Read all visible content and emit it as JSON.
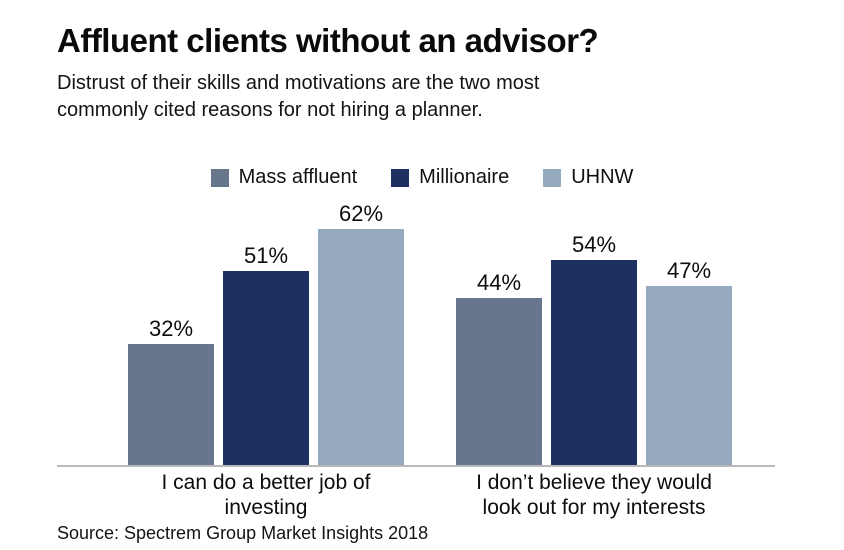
{
  "header": {
    "title": "Affluent clients without an advisor?",
    "subtitle_lines": [
      "Distrust of their skills and motivations are the two most",
      "commonly cited reasons for not hiring a planner."
    ]
  },
  "legend": {
    "items": [
      {
        "label": "Mass affluent",
        "color": "#67758d"
      },
      {
        "label": "Millionaire",
        "color": "#1c3162"
      },
      {
        "label": "UHNW",
        "color": "#95aabf"
      }
    ]
  },
  "chart_data": {
    "type": "bar",
    "title": "Affluent clients without an advisor?",
    "categories": [
      "I can do a better job of investing",
      "I don’t believe they would look out for my interests"
    ],
    "category_labels_wrapped": [
      [
        "I can do a better job of",
        "investing"
      ],
      [
        "I don’t believe they would",
        "look out for my interests"
      ]
    ],
    "series": [
      {
        "name": "Mass affluent",
        "color": "#67758d",
        "values": [
          32,
          44
        ]
      },
      {
        "name": "Millionaire",
        "color": "#1c3162",
        "values": [
          51,
          54
        ]
      },
      {
        "name": "UHNW",
        "color": "#95aabf",
        "values": [
          62,
          47
        ]
      }
    ],
    "value_suffix": "%",
    "xlabel": "",
    "ylabel": "",
    "ylim": [
      0,
      70
    ],
    "grid": false,
    "legend_position": "top",
    "baseline_color": "#b9b9b9"
  },
  "footer": {
    "source": "Source: Spectrem Group Market Insights 2018"
  }
}
